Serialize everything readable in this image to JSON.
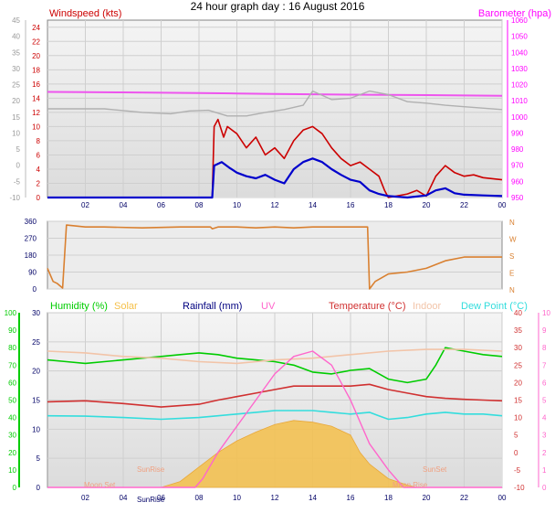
{
  "title": "24 hour graph day : 16 August 2016",
  "colors": {
    "wind": "#cc0000",
    "wind_avg": "#0000cc",
    "barometer": "#ff00ff",
    "baro_line": "#ee55ee",
    "gust_grey": "#b0b0b0",
    "direction": "#d98030",
    "humidity": "#00cc00",
    "solar": "#f5c04a",
    "rain": "#00007f",
    "uv": "#ff66cc",
    "temperature": "#d03030",
    "indoor": "#f2c4a8",
    "dewpoint": "#33dddd",
    "sun": "#f0a080",
    "grid": "#cfcfcf",
    "plot_bg": "#ececec"
  },
  "chart_data": [
    {
      "type": "line",
      "id": "wind-baro",
      "left_label": "Windspeed (kts)",
      "right_label": "Barometer (hpa)",
      "x_ticks": [
        "02",
        "04",
        "06",
        "08",
        "10",
        "12",
        "14",
        "16",
        "18",
        "20",
        "22",
        "00"
      ],
      "y_left_outer": [
        "45",
        "40",
        "35",
        "30",
        "25",
        "20",
        "15",
        "10",
        "5",
        "0",
        "-5",
        "-10"
      ],
      "y_left_inner": [
        "24",
        "22",
        "20",
        "18",
        "16",
        "14",
        "12",
        "10",
        "8",
        "6",
        "4",
        "2",
        "0"
      ],
      "y_right": [
        "1060",
        "1050",
        "1040",
        "1030",
        "1020",
        "1010",
        "1000",
        "990",
        "980",
        "970",
        "960",
        "950"
      ],
      "ylim_wind": [
        0,
        25
      ],
      "ylim_baro": [
        950,
        1060
      ],
      "series": [
        {
          "key": "barometer",
          "points": [
            [
              0,
              1015.5
            ],
            [
              2,
              1015.4
            ],
            [
              4,
              1015.2
            ],
            [
              6,
              1015
            ],
            [
              8,
              1014.8
            ],
            [
              10,
              1014.5
            ],
            [
              12,
              1014.2
            ],
            [
              14,
              1014
            ],
            [
              16,
              1013.8
            ],
            [
              18,
              1013.7
            ],
            [
              20,
              1013.5
            ],
            [
              22,
              1013.3
            ],
            [
              24,
              1013.1
            ]
          ]
        },
        {
          "key": "gust_grey",
          "points": [
            [
              0,
              12.5
            ],
            [
              3,
              12.5
            ],
            [
              5,
              12
            ],
            [
              6.5,
              11.8
            ],
            [
              7.5,
              12.2
            ],
            [
              8.5,
              12.3
            ],
            [
              9.5,
              11.5
            ],
            [
              10.5,
              11.5
            ],
            [
              11.5,
              12
            ],
            [
              12.5,
              12.4
            ],
            [
              13.5,
              13
            ],
            [
              14,
              15
            ],
            [
              15,
              13.8
            ],
            [
              16,
              14
            ],
            [
              17,
              15
            ],
            [
              18,
              14.5
            ],
            [
              19,
              13.5
            ],
            [
              20,
              13.3
            ],
            [
              21,
              13
            ],
            [
              22,
              12.8
            ],
            [
              24,
              12.4
            ]
          ]
        },
        {
          "key": "wind_gust",
          "points": [
            [
              0,
              0
            ],
            [
              8.7,
              0
            ],
            [
              8.8,
              10
            ],
            [
              9.0,
              11
            ],
            [
              9.3,
              8.5
            ],
            [
              9.5,
              10
            ],
            [
              10,
              9
            ],
            [
              10.5,
              7
            ],
            [
              11,
              8.5
            ],
            [
              11.5,
              6
            ],
            [
              12,
              7
            ],
            [
              12.5,
              5.5
            ],
            [
              13,
              8
            ],
            [
              13.5,
              9.5
            ],
            [
              14,
              10
            ],
            [
              14.5,
              9
            ],
            [
              15,
              7
            ],
            [
              15.5,
              5.5
            ],
            [
              16,
              4.5
            ],
            [
              16.5,
              5
            ],
            [
              17,
              4
            ],
            [
              17.5,
              3
            ],
            [
              17.8,
              1
            ],
            [
              18,
              0
            ],
            [
              19,
              0.5
            ],
            [
              19.5,
              1
            ],
            [
              20,
              0.2
            ],
            [
              20.5,
              3
            ],
            [
              21,
              4.5
            ],
            [
              21.5,
              3.5
            ],
            [
              22,
              3
            ],
            [
              22.5,
              3.2
            ],
            [
              23,
              2.8
            ],
            [
              24,
              2.5
            ]
          ]
        },
        {
          "key": "wind_avg",
          "points": [
            [
              0,
              0
            ],
            [
              8.7,
              0
            ],
            [
              8.8,
              4.5
            ],
            [
              9.2,
              5
            ],
            [
              9.6,
              4.2
            ],
            [
              10,
              3.5
            ],
            [
              10.5,
              3
            ],
            [
              11,
              2.7
            ],
            [
              11.5,
              3.2
            ],
            [
              12,
              2.5
            ],
            [
              12.5,
              2
            ],
            [
              13,
              4
            ],
            [
              13.5,
              5
            ],
            [
              14,
              5.5
            ],
            [
              14.5,
              5
            ],
            [
              15,
              4
            ],
            [
              15.5,
              3.2
            ],
            [
              16,
              2.5
            ],
            [
              16.5,
              2.2
            ],
            [
              17,
              1
            ],
            [
              17.5,
              0.5
            ],
            [
              18,
              0.2
            ],
            [
              19,
              0
            ],
            [
              20,
              0.3
            ],
            [
              20.5,
              1
            ],
            [
              21,
              1.3
            ],
            [
              21.5,
              0.6
            ],
            [
              22,
              0.4
            ],
            [
              23,
              0.3
            ],
            [
              24,
              0.2
            ]
          ]
        }
      ]
    },
    {
      "type": "line",
      "id": "wind-direction",
      "y_left": [
        "360",
        "270",
        "180",
        "90",
        "0"
      ],
      "y_right": [
        "N",
        "W",
        "S",
        "E",
        "N"
      ],
      "ylim": [
        0,
        360
      ],
      "series": [
        {
          "key": "direction",
          "points": [
            [
              0,
              110
            ],
            [
              0.3,
              40
            ],
            [
              0.5,
              30
            ],
            [
              0.8,
              5
            ],
            [
              1,
              340
            ],
            [
              2,
              330
            ],
            [
              3,
              330
            ],
            [
              5,
              325
            ],
            [
              7,
              330
            ],
            [
              8.6,
              330
            ],
            [
              8.7,
              320
            ],
            [
              9,
              330
            ],
            [
              10,
              330
            ],
            [
              11,
              325
            ],
            [
              12,
              330
            ],
            [
              13,
              325
            ],
            [
              14,
              330
            ],
            [
              15,
              330
            ],
            [
              16,
              330
            ],
            [
              16.9,
              330
            ],
            [
              17,
              0
            ],
            [
              17.3,
              40
            ],
            [
              18,
              80
            ],
            [
              19,
              90
            ],
            [
              20,
              110
            ],
            [
              21,
              150
            ],
            [
              22,
              170
            ],
            [
              23,
              170
            ],
            [
              24,
              170
            ]
          ]
        }
      ]
    },
    {
      "type": "line",
      "id": "temp-humidity",
      "headers": [
        "Humidity (%)",
        "Solar",
        "Rainfall (mm)",
        "UV",
        "Temperature (°C)",
        "Indoor",
        "Dew Point (°C)"
      ],
      "y_humidity": [
        "100",
        "90",
        "80",
        "70",
        "60",
        "50",
        "40",
        "30",
        "20",
        "10",
        "0"
      ],
      "y_left_inner": [
        "30",
        "25",
        "20",
        "15",
        "10",
        "5",
        "0"
      ],
      "y_right_temp": [
        "40",
        "35",
        "30",
        "25",
        "20",
        "15",
        "10",
        "5",
        "0",
        "-5",
        "-10"
      ],
      "y_right_uv": [
        "10",
        "9",
        "8",
        "7",
        "6",
        "5",
        "4",
        "3",
        "2",
        "1",
        "0"
      ],
      "ylim_temp": [
        -10,
        40
      ],
      "annotations": [
        "SunRise",
        "SunSet",
        "Moon Set",
        "Moon Rise",
        "SunRise"
      ],
      "series": [
        {
          "key": "humidity",
          "points": [
            [
              0,
              73
            ],
            [
              1,
              72
            ],
            [
              2,
              71
            ],
            [
              3,
              72
            ],
            [
              4,
              73
            ],
            [
              6,
              75
            ],
            [
              7,
              76
            ],
            [
              8,
              77
            ],
            [
              9,
              76
            ],
            [
              10,
              74
            ],
            [
              11,
              73
            ],
            [
              12,
              72
            ],
            [
              13,
              70
            ],
            [
              14,
              66
            ],
            [
              15,
              65
            ],
            [
              16,
              67
            ],
            [
              17,
              68
            ],
            [
              18,
              62
            ],
            [
              19,
              60
            ],
            [
              20,
              62
            ],
            [
              20.5,
              70
            ],
            [
              21,
              80
            ],
            [
              22,
              78
            ],
            [
              23,
              76
            ],
            [
              24,
              75
            ]
          ]
        },
        {
          "key": "indoor",
          "points": [
            [
              0,
              29
            ],
            [
              2,
              28.5
            ],
            [
              4,
              27.5
            ],
            [
              6,
              27
            ],
            [
              8,
              26
            ],
            [
              10,
              25.5
            ],
            [
              12,
              26.5
            ],
            [
              14,
              27
            ],
            [
              16,
              28
            ],
            [
              18,
              29
            ],
            [
              20,
              29.5
            ],
            [
              22,
              29.5
            ],
            [
              24,
              29
            ]
          ]
        },
        {
          "key": "temperature",
          "points": [
            [
              0,
              14.5
            ],
            [
              2,
              14.8
            ],
            [
              4,
              14
            ],
            [
              6,
              13
            ],
            [
              8,
              13.8
            ],
            [
              9,
              15
            ],
            [
              10,
              16
            ],
            [
              11,
              17
            ],
            [
              12,
              18
            ],
            [
              13,
              19
            ],
            [
              14,
              19
            ],
            [
              15,
              19
            ],
            [
              16,
              19
            ],
            [
              17,
              19.5
            ],
            [
              18,
              18
            ],
            [
              19,
              17
            ],
            [
              20,
              16
            ],
            [
              21,
              15.5
            ],
            [
              22,
              15.2
            ],
            [
              23,
              15
            ],
            [
              24,
              14.8
            ]
          ]
        },
        {
          "key": "dewpoint",
          "points": [
            [
              0,
              10.5
            ],
            [
              2,
              10.4
            ],
            [
              4,
              10
            ],
            [
              6,
              9.5
            ],
            [
              8,
              10
            ],
            [
              9,
              10.5
            ],
            [
              10,
              11
            ],
            [
              11,
              11.5
            ],
            [
              12,
              12
            ],
            [
              13,
              12
            ],
            [
              14,
              12
            ],
            [
              15,
              11.5
            ],
            [
              16,
              11
            ],
            [
              17,
              11.5
            ],
            [
              17.5,
              10.5
            ],
            [
              18,
              9.5
            ],
            [
              19,
              10
            ],
            [
              20,
              11
            ],
            [
              21,
              11.5
            ],
            [
              22,
              11
            ],
            [
              23,
              11
            ],
            [
              24,
              10.5
            ]
          ]
        },
        {
          "key": "uv",
          "points": [
            [
              0,
              0
            ],
            [
              7.8,
              0
            ],
            [
              8.2,
              0.5
            ],
            [
              9,
              2
            ],
            [
              10,
              3.5
            ],
            [
              11,
              5
            ],
            [
              12,
              6.5
            ],
            [
              13,
              7.5
            ],
            [
              14,
              7.8
            ],
            [
              15,
              7
            ],
            [
              16,
              5
            ],
            [
              17,
              2.5
            ],
            [
              18,
              1
            ],
            [
              18.8,
              0
            ],
            [
              24,
              0
            ]
          ]
        }
      ],
      "solar": {
        "key": "solar",
        "points": [
          [
            0,
            0
          ],
          [
            6,
            0
          ],
          [
            7,
            1
          ],
          [
            8,
            3.5
          ],
          [
            9,
            6
          ],
          [
            10,
            8
          ],
          [
            11,
            9.5
          ],
          [
            12,
            10.8
          ],
          [
            13,
            11.5
          ],
          [
            14,
            11.2
          ],
          [
            15,
            10.5
          ],
          [
            16,
            9
          ],
          [
            16.5,
            6
          ],
          [
            17,
            4
          ],
          [
            18,
            1.5
          ],
          [
            19,
            0.4
          ],
          [
            19.5,
            0
          ],
          [
            24,
            0
          ]
        ]
      }
    }
  ]
}
